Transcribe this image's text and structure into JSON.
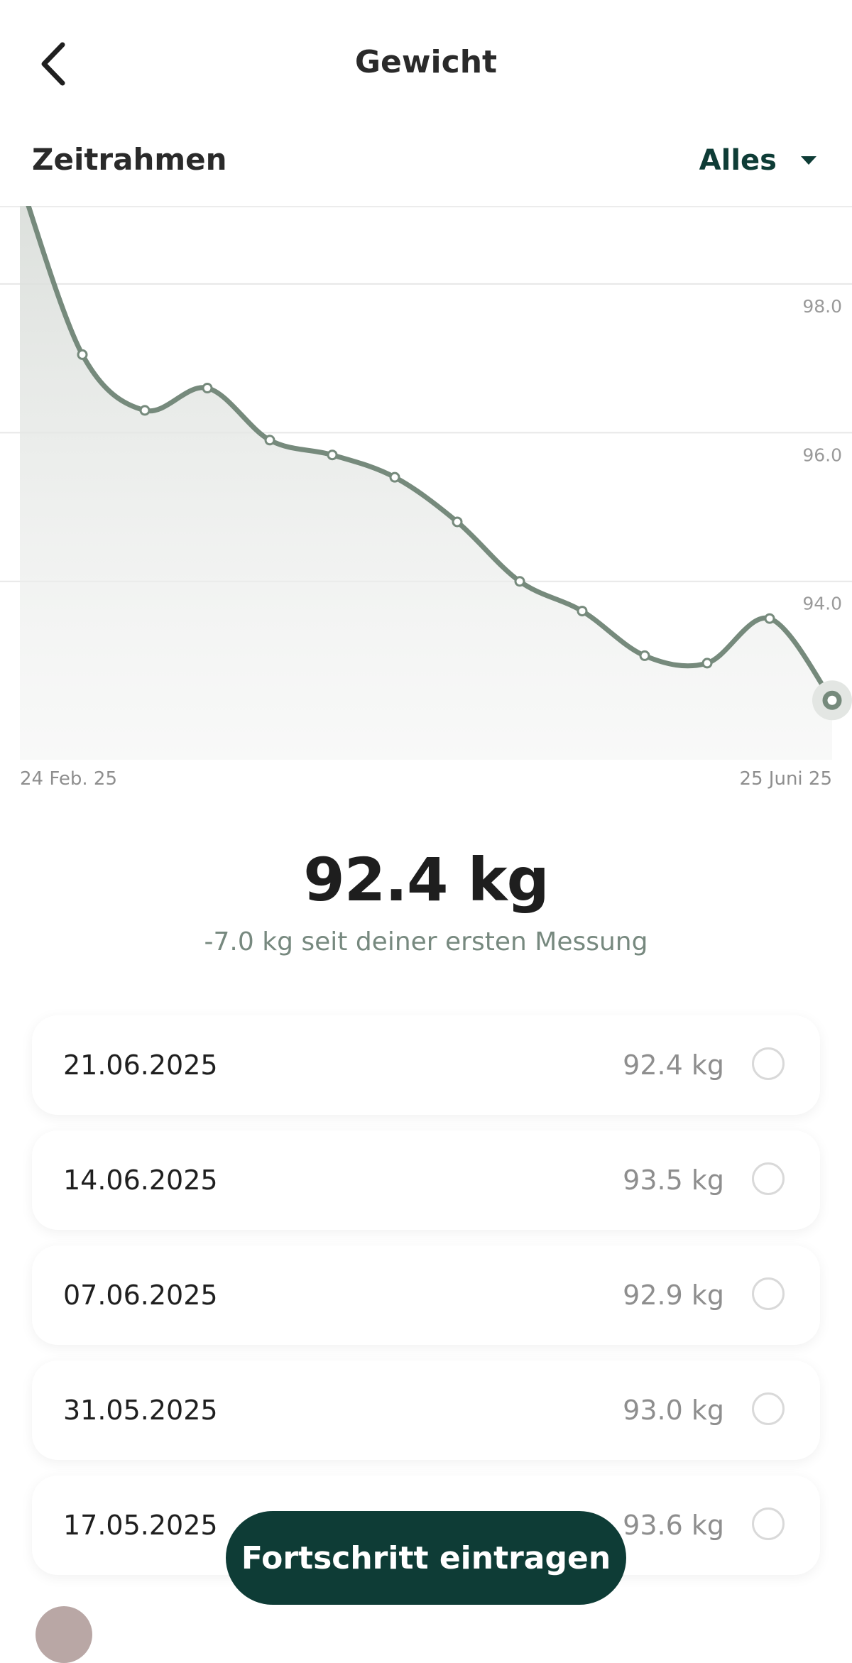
{
  "header": {
    "title": "Gewicht",
    "back_icon": "chevron-left-icon"
  },
  "timeframe": {
    "label": "Zeitrahmen",
    "selected": "Alles",
    "dropdown_icon": "caret-down-icon"
  },
  "chart_data": {
    "type": "line",
    "x_start_label": "24 Feb. 25",
    "x_end_label": "25 Juni 25",
    "y_ticks": [
      98.0,
      96.0,
      94.0
    ],
    "ylim": [
      91.6,
      99.05
    ],
    "grid": true,
    "line_color": "#768a7c",
    "series": [
      {
        "values": [
          99.4,
          97.05,
          96.3,
          96.6,
          95.9,
          95.7,
          95.4,
          94.8,
          94.0,
          93.6,
          93.0,
          92.9,
          93.5,
          92.4
        ]
      }
    ]
  },
  "summary": {
    "current": "92.4 kg",
    "delta": "-7.0 kg seit deiner ersten Messung"
  },
  "entries": [
    {
      "date": "21.06.2025",
      "value": "92.4 kg"
    },
    {
      "date": "14.06.2025",
      "value": "93.5 kg"
    },
    {
      "date": "07.06.2025",
      "value": "92.9 kg"
    },
    {
      "date": "31.05.2025",
      "value": "93.0 kg"
    },
    {
      "date": "17.05.2025",
      "value": "93.6 kg"
    }
  ],
  "cta": {
    "label": "Fortschritt eintragen"
  },
  "colors": {
    "brand": "#0e3c36",
    "line": "#768a7c"
  }
}
